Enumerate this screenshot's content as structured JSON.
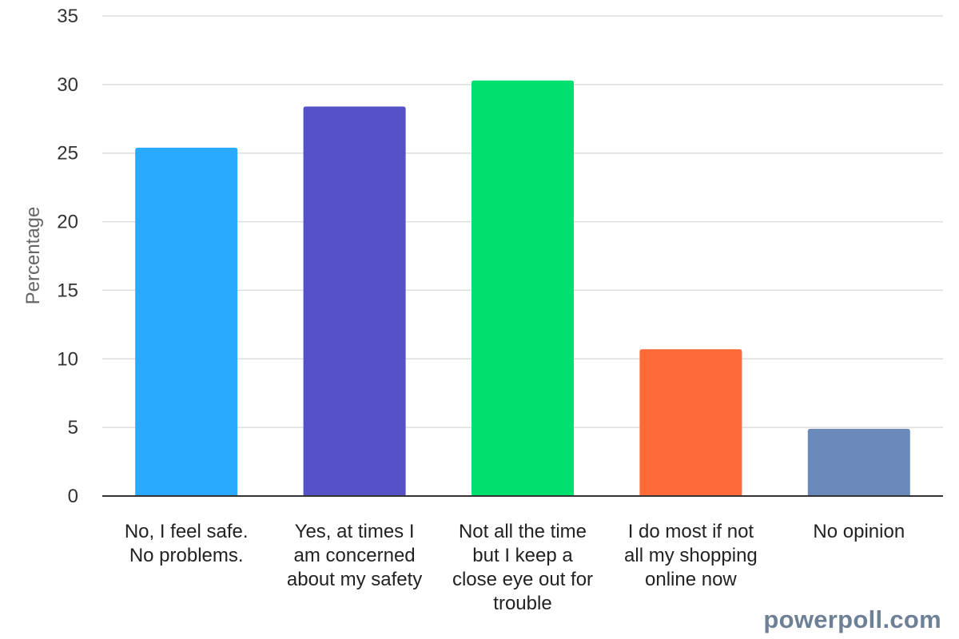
{
  "chart_data": {
    "type": "bar",
    "title": "",
    "xlabel": "",
    "ylabel": "Percentage",
    "ylim": [
      0,
      35
    ],
    "yticks": [
      0,
      5,
      10,
      15,
      20,
      25,
      30,
      35
    ],
    "grid": true,
    "legend": "none",
    "categories": [
      "No, I feel safe. No problems.",
      "Yes, at times I am concerned about my safety",
      "Not all the time but I keep a close eye out for trouble",
      "I do most if not all my shopping online now",
      "No opinion"
    ],
    "category_label_lines": [
      [
        "No, I feel safe.",
        "No problems."
      ],
      [
        "Yes, at times I",
        "am concerned",
        "about my safety"
      ],
      [
        "Not all the time",
        "but I keep a",
        "close eye out for",
        "trouble"
      ],
      [
        "I do most if not",
        "all my shopping",
        "online now"
      ],
      [
        "No opinion"
      ]
    ],
    "values": [
      25.4,
      28.4,
      30.3,
      10.7,
      4.9
    ],
    "colors": [
      "#2aaaff",
      "#5551c7",
      "#00e06f",
      "#ff6a37",
      "#6b8abb"
    ]
  },
  "watermark": "powerpoll.com"
}
